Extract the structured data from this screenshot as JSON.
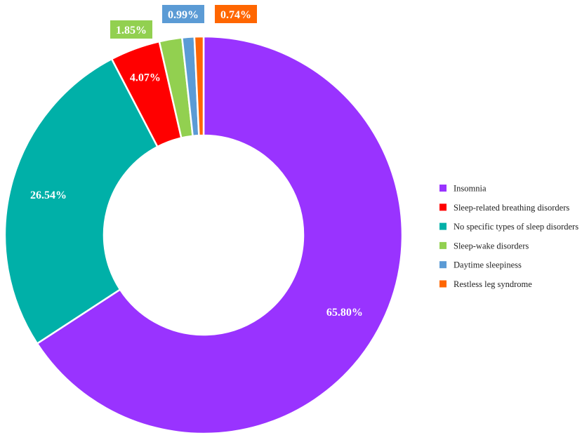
{
  "chart_data": {
    "type": "pie",
    "donut": true,
    "title": "",
    "legend_position": "right",
    "categories": [
      "Insomnia",
      "Sleep-related breathing disorders",
      "No specific types of sleep disorders",
      "Sleep-wake disorders",
      "Daytime sleepiness",
      "Restless leg syndrome"
    ],
    "values": [
      65.8,
      4.07,
      26.54,
      1.85,
      0.99,
      0.74
    ],
    "labels": [
      "65.80%",
      "4.07%",
      "26.54%",
      "1.85%",
      "0.99%",
      "0.74%"
    ],
    "colors": [
      "#9933FF",
      "#FF0000",
      "#00B0A8",
      "#92D050",
      "#5B9BD5",
      "#FF6600"
    ],
    "draw_order": [
      0,
      2,
      1,
      3,
      4,
      5
    ]
  }
}
